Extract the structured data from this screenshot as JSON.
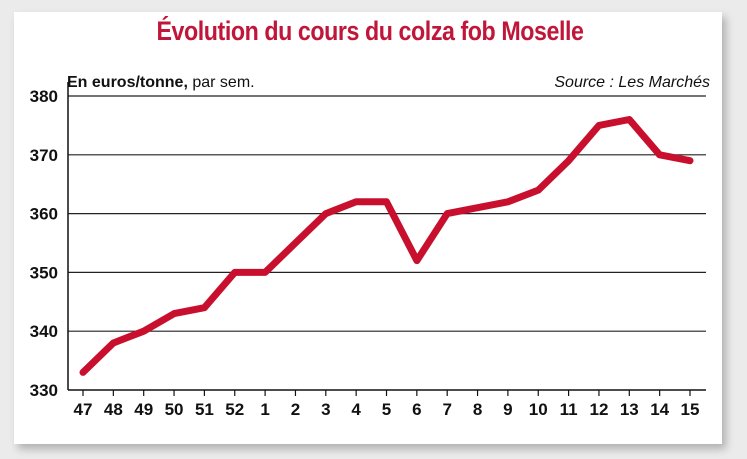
{
  "chart_data": {
    "type": "line",
    "title": "Évolution du cours du colza fob Moselle",
    "unit_bold": "En euros/tonne,",
    "unit_rest": " par sem.",
    "source": "Source : Les Marchés",
    "categories": [
      "47",
      "48",
      "49",
      "50",
      "51",
      "52",
      "1",
      "2",
      "3",
      "4",
      "5",
      "6",
      "7",
      "8",
      "9",
      "10",
      "11",
      "12",
      "13",
      "14",
      "15"
    ],
    "series": [
      {
        "values": [
          333,
          338,
          340,
          343,
          344,
          350,
          350,
          355,
          360,
          362,
          362,
          352,
          360,
          361,
          362,
          364,
          369,
          375,
          376,
          370,
          369
        ]
      }
    ],
    "yticks": [
      330,
      340,
      350,
      360,
      370,
      380
    ],
    "ylim": [
      330,
      380
    ],
    "grid": true,
    "line_color": "#c8102e",
    "grid_color": "#222222",
    "title_color": "#c0163a"
  }
}
